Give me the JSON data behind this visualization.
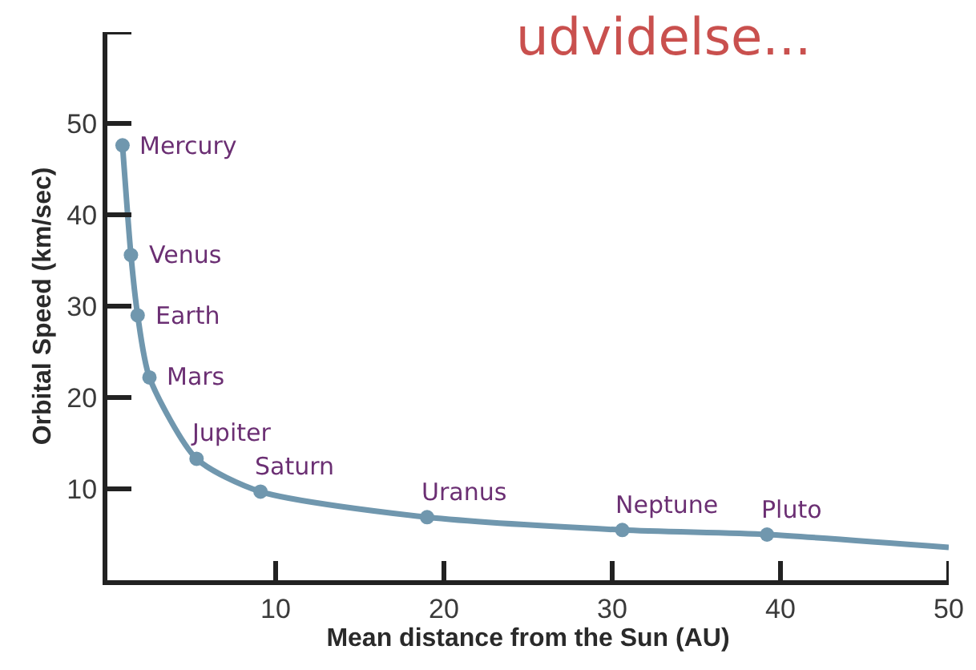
{
  "chart_data": {
    "type": "line",
    "xlabel": "Mean distance from the Sun (AU)",
    "ylabel": "Orbital Speed (km/sec)",
    "xlim": [
      0,
      50
    ],
    "ylim": [
      0,
      60
    ],
    "xticks": [
      10,
      20,
      30,
      40,
      50
    ],
    "yticks": [
      10,
      20,
      30,
      40,
      50,
      {
        "value": 60,
        "label": null
      }
    ],
    "series": [
      {
        "color": "#7097ae",
        "marker": "none",
        "x": [
          0.9,
          1.4,
          1.8,
          2.5,
          5.3,
          9.1,
          19,
          30.6,
          39.2,
          50
        ],
        "values": [
          47.6,
          35.6,
          29,
          22.2,
          13.3,
          9.7,
          6.9,
          5.5,
          5,
          3.6
        ]
      },
      {
        "type": "scatter",
        "color": "#7097ae",
        "marker": "circle",
        "x": [
          0.9,
          1.4,
          1.8,
          2.5,
          5.3,
          9.1,
          19,
          30.6,
          39.2
        ],
        "values": [
          47.6,
          35.6,
          29,
          22.2,
          13.3,
          9.7,
          6.9,
          5.5,
          5
        ]
      }
    ],
    "annotations": [
      "udvidelse...",
      {
        "text": "Mercury",
        "x": 0.9,
        "y": 47.6
      },
      {
        "text": "Venus",
        "x": 1.4,
        "y": 35.6
      },
      {
        "text": "Earth",
        "x": 1.8,
        "y": 29
      },
      {
        "text": "Mars",
        "x": 2.5,
        "y": 22.2
      },
      {
        "text": "Jupiter",
        "x": 5.3,
        "y": 13.3
      },
      {
        "text": "Saturn",
        "x": 9.1,
        "y": 9.7
      },
      {
        "text": "Uranus",
        "x": 19,
        "y": 6.9
      },
      {
        "text": "Neptune",
        "x": 30.6,
        "y": 5.5
      },
      {
        "text": "Pluto",
        "x": 39.2,
        "y": 5
      }
    ]
  }
}
